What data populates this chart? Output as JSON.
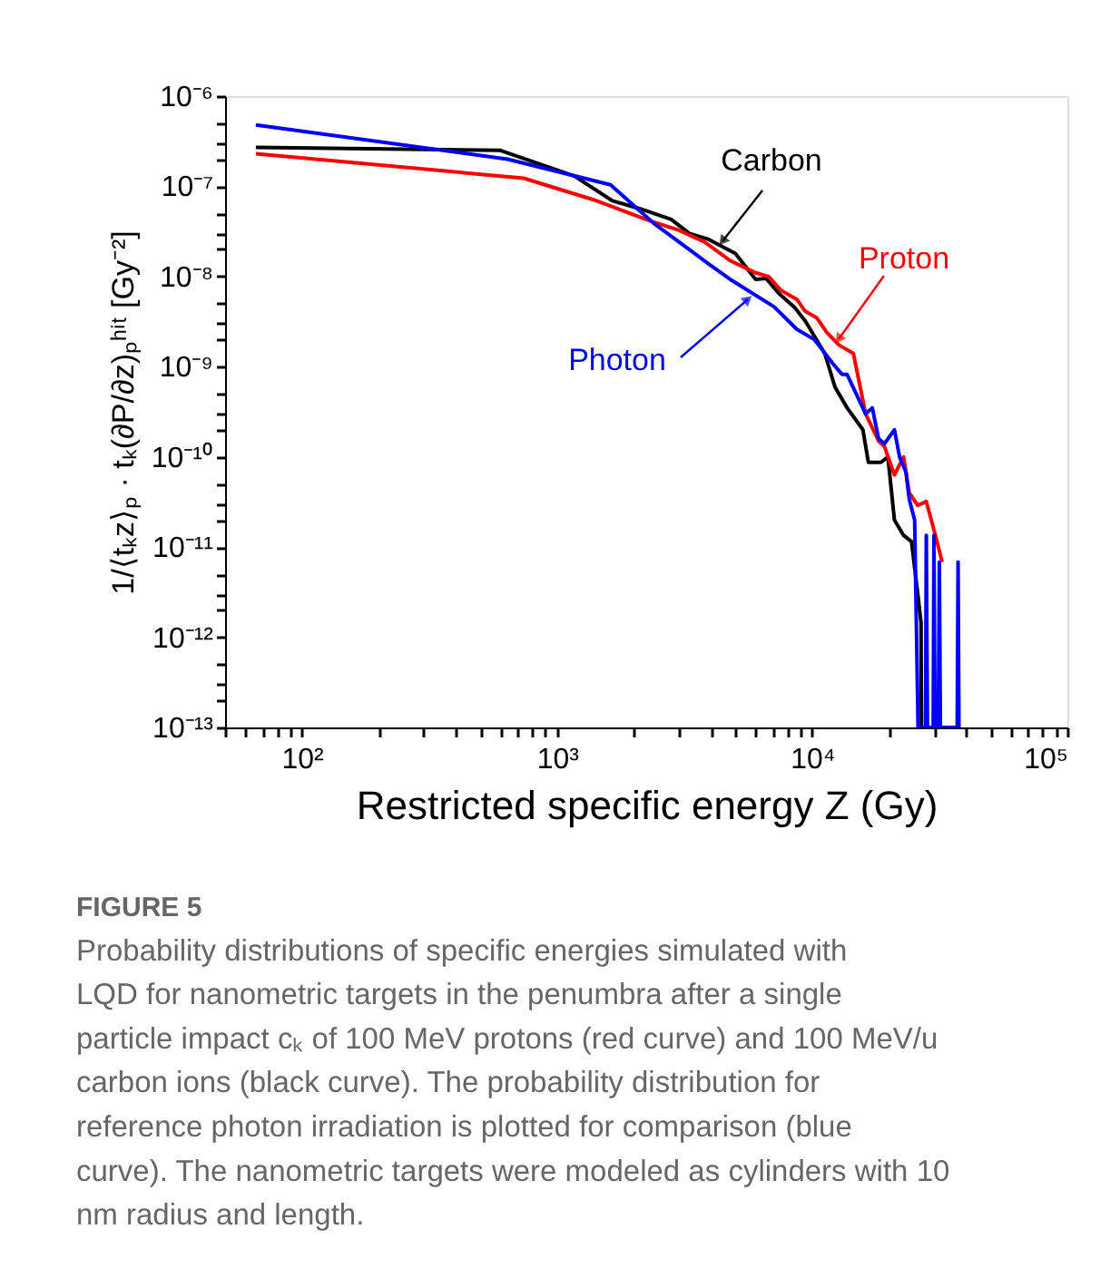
{
  "chart_data": {
    "type": "line",
    "xlabel": "Restricted specific energy Z (Gy)",
    "ylabel": "1/⟨tₖz⟩ₚ · tₖ(∂P/∂z)ₚʰⁱᵗ [Gy⁻²]",
    "log": "xy",
    "grid": false,
    "legend": false,
    "marker": "none",
    "line_style": "solid",
    "xlim": [
      50,
      100000
    ],
    "ylim": [
      1e-13,
      1e-06
    ],
    "xticks": [
      {
        "value": 50,
        "label": null
      },
      {
        "value": 60,
        "label": null
      },
      {
        "value": 70,
        "label": null
      },
      {
        "value": 80,
        "label": null
      },
      {
        "value": 90,
        "label": null
      },
      {
        "value": 100,
        "label": "10²"
      },
      {
        "value": 200,
        "label": null
      },
      {
        "value": 300,
        "label": null
      },
      {
        "value": 400,
        "label": null
      },
      {
        "value": 500,
        "label": null
      },
      {
        "value": 600,
        "label": null
      },
      {
        "value": 700,
        "label": null
      },
      {
        "value": 800,
        "label": null
      },
      {
        "value": 900,
        "label": null
      },
      {
        "value": 1000,
        "label": "10³"
      },
      {
        "value": 2000,
        "label": null
      },
      {
        "value": 3000,
        "label": null
      },
      {
        "value": 4000,
        "label": null
      },
      {
        "value": 5000,
        "label": null
      },
      {
        "value": 6000,
        "label": null
      },
      {
        "value": 7000,
        "label": null
      },
      {
        "value": 8000,
        "label": null
      },
      {
        "value": 9000,
        "label": null
      },
      {
        "value": 10000,
        "label": "10⁴"
      },
      {
        "value": 20000,
        "label": null
      },
      {
        "value": 30000,
        "label": null
      },
      {
        "value": 40000,
        "label": null
      },
      {
        "value": 50000,
        "label": null
      },
      {
        "value": 60000,
        "label": null
      },
      {
        "value": 70000,
        "label": null
      },
      {
        "value": 80000,
        "label": null
      },
      {
        "value": 90000,
        "label": null
      },
      {
        "value": 100000,
        "label": "10⁵"
      }
    ],
    "yticks": [
      {
        "value": 1e-13,
        "label": "10⁻¹³"
      },
      {
        "value": 2e-13,
        "label": null
      },
      {
        "value": 3e-13,
        "label": null
      },
      {
        "value": 5e-13,
        "label": null
      },
      {
        "value": 1e-12,
        "label": "10⁻¹²"
      },
      {
        "value": 2e-12,
        "label": null
      },
      {
        "value": 3e-12,
        "label": null
      },
      {
        "value": 5e-12,
        "label": null
      },
      {
        "value": 1e-11,
        "label": "10⁻¹¹"
      },
      {
        "value": 2e-11,
        "label": null
      },
      {
        "value": 3e-11,
        "label": null
      },
      {
        "value": 5e-11,
        "label": null
      },
      {
        "value": 1e-10,
        "label": "10⁻¹⁰"
      },
      {
        "value": 2e-10,
        "label": null
      },
      {
        "value": 3e-10,
        "label": null
      },
      {
        "value": 5e-10,
        "label": null
      },
      {
        "value": 1e-09,
        "label": "10⁻⁹"
      },
      {
        "value": 2e-09,
        "label": null
      },
      {
        "value": 3e-09,
        "label": null
      },
      {
        "value": 5e-09,
        "label": null
      },
      {
        "value": 1e-08,
        "label": "10⁻⁸"
      },
      {
        "value": 2e-08,
        "label": null
      },
      {
        "value": 3e-08,
        "label": null
      },
      {
        "value": 5e-08,
        "label": null
      },
      {
        "value": 1e-07,
        "label": "10⁻⁷"
      },
      {
        "value": 2e-07,
        "label": null
      },
      {
        "value": 3e-07,
        "label": null
      },
      {
        "value": 5e-07,
        "label": null
      },
      {
        "value": 1e-06,
        "label": "10⁻⁶"
      }
    ],
    "series": [
      {
        "name": "Carbon",
        "color": "#000000",
        "x": [
          66,
          600,
          1170,
          1650,
          2130,
          2800,
          3300,
          3900,
          5000,
          6000,
          6600,
          7400,
          8500,
          9400,
          11200,
          12300,
          13700,
          15800,
          16600,
          18600,
          19800,
          21000,
          22800,
          24500,
          25900,
          26700,
          26800
        ],
        "values": [
          2.7e-07,
          2.5e-07,
          1.3e-07,
          6.9e-08,
          5.6e-08,
          4.3e-08,
          3e-08,
          2.6e-08,
          1.8e-08,
          9.3e-09,
          9.5e-09,
          6.5e-09,
          4.6e-09,
          3.2e-09,
          1.4e-09,
          5.9e-10,
          3.5e-10,
          2e-10,
          8.7e-11,
          8.7e-11,
          1e-10,
          2e-11,
          1.35e-11,
          1.15e-11,
          3.1e-12,
          1.45e-12,
          1e-13
        ]
      },
      {
        "name": "Proton",
        "color": "#ff0000",
        "x": [
          66,
          740,
          1390,
          2280,
          2970,
          3800,
          4770,
          6000,
          6750,
          7550,
          8700,
          9400,
          10400,
          11400,
          12700,
          14500,
          16200,
          18200,
          19200,
          21000,
          22800,
          24000,
          25900,
          28000,
          30600,
          32300
        ],
        "values": [
          2.3e-07,
          1.23e-07,
          7.1e-08,
          4.2e-08,
          3.3e-08,
          2.4e-08,
          1.5e-08,
          1.1e-08,
          1e-08,
          7e-09,
          5.6e-09,
          4.1e-09,
          3.5e-09,
          2.4e-09,
          1.75e-09,
          1.4e-09,
          3e-10,
          1.5e-10,
          1.3e-10,
          6.3e-11,
          1e-10,
          4e-11,
          2.9e-11,
          3.2e-11,
          1.26e-11,
          6.8e-12
        ]
      },
      {
        "name": "Photon",
        "color": "#0000ff",
        "x": [
          66,
          640,
          1620,
          2390,
          3900,
          4770,
          7100,
          8700,
          10200,
          12000,
          13100,
          13700,
          16200,
          17200,
          18200,
          19200,
          21000,
          22000,
          23300,
          24000,
          25200,
          26000,
          27800,
          28000,
          28300,
          29800,
          30000,
          30300,
          31200,
          31500,
          31800,
          37000,
          37300,
          37600
        ],
        "values": [
          4.8e-07,
          2e-07,
          1.04e-07,
          3.9e-08,
          1.4e-08,
          9.3e-09,
          4.6e-09,
          2.6e-09,
          2e-09,
          1.1e-09,
          8.2e-10,
          8.2e-10,
          3e-10,
          3.5e-10,
          1.6e-10,
          1.4e-10,
          2e-10,
          1e-10,
          6.8e-11,
          3.4e-11,
          2e-11,
          1e-13,
          1e-13,
          1.35e-11,
          1e-13,
          1e-13,
          1.35e-11,
          1e-13,
          1e-13,
          6.8e-12,
          1e-13,
          1e-13,
          6.8e-12,
          1e-13
        ]
      }
    ],
    "annotations": [
      "FIGURE 5",
      "Probability distributions of specific energies simulated with LQD for nanometric targets in the penumbra after a single particle impact cₖ of 100 MeV protons (red curve) and 100 MeV/u carbon ions (black curve). The probability distribution for reference photon irradiation is plotted for comparison (blue curve). The nanometric targets were modeled as cylinders with 10 nm radius and length."
    ]
  }
}
